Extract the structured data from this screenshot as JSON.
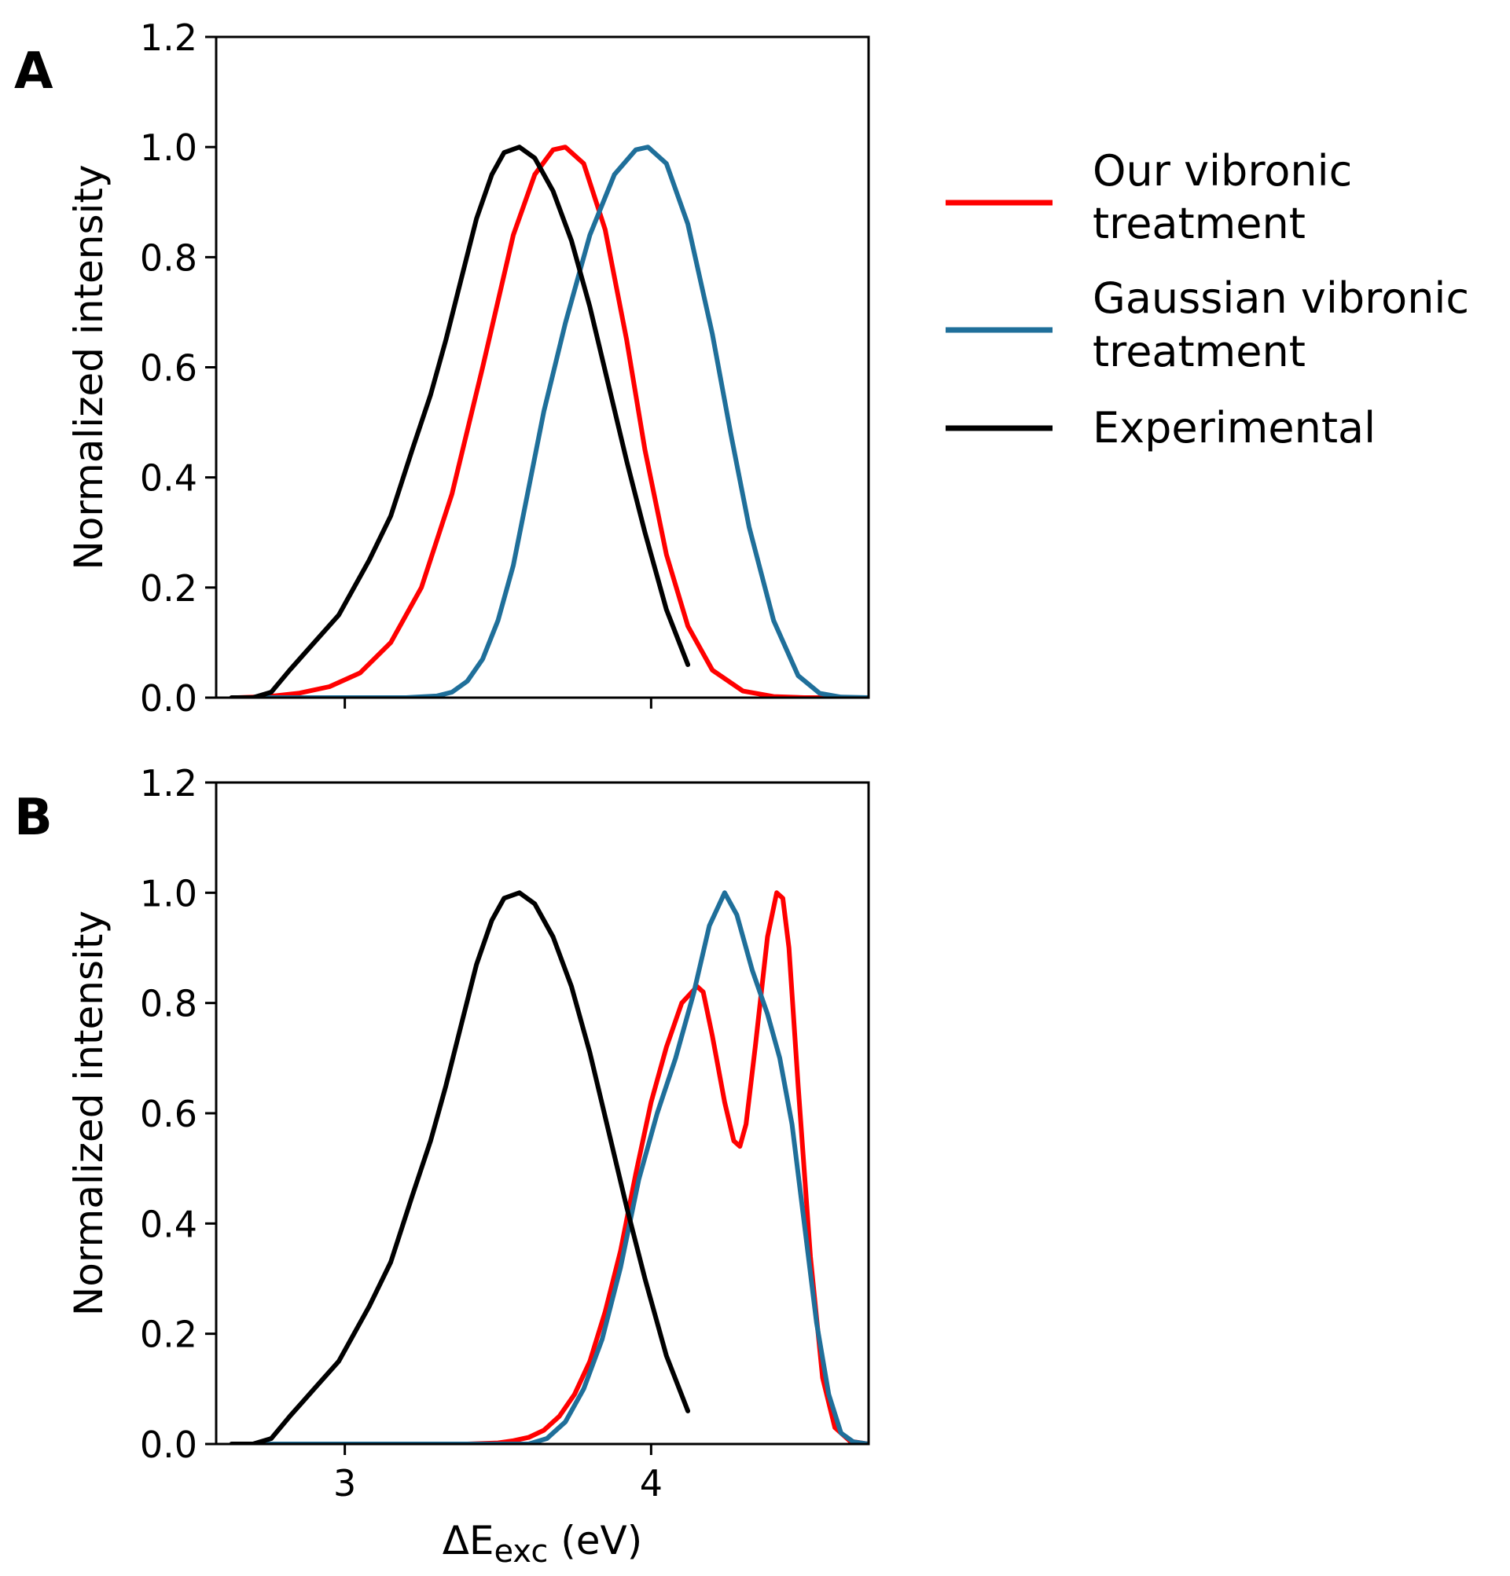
{
  "chart_data": [
    {
      "panel": "A",
      "type": "line",
      "ylabel": "Normalized intensity",
      "xlabel": "",
      "xlim": [
        2.58,
        4.71
      ],
      "ylim": [
        0.0,
        1.2
      ],
      "xticks": [
        3,
        4
      ],
      "xtick_labels_visible": false,
      "yticks": [
        0.0,
        0.2,
        0.4,
        0.6,
        0.8,
        1.0,
        1.2
      ],
      "ytick_labels": [
        "0.0",
        "0.2",
        "0.4",
        "0.6",
        "0.8",
        "1.0",
        "1.2"
      ],
      "series": [
        {
          "name": "Our vibronic treatment",
          "color": "#ff0000",
          "x": [
            2.65,
            2.75,
            2.85,
            2.95,
            3.05,
            3.15,
            3.25,
            3.35,
            3.45,
            3.55,
            3.62,
            3.68,
            3.72,
            3.78,
            3.85,
            3.92,
            3.98,
            4.05,
            4.12,
            4.2,
            4.3,
            4.4,
            4.5,
            4.6,
            4.71
          ],
          "y": [
            0.0,
            0.002,
            0.008,
            0.02,
            0.045,
            0.1,
            0.2,
            0.37,
            0.6,
            0.84,
            0.95,
            0.995,
            1.0,
            0.97,
            0.85,
            0.65,
            0.45,
            0.26,
            0.13,
            0.05,
            0.012,
            0.002,
            0.0,
            0.0,
            0.0
          ]
        },
        {
          "name": "Gaussian vibronic treatment",
          "color": "#1f6f9a",
          "x": [
            2.65,
            3.2,
            3.3,
            3.35,
            3.4,
            3.45,
            3.5,
            3.55,
            3.6,
            3.65,
            3.72,
            3.8,
            3.88,
            3.95,
            3.99,
            4.05,
            4.12,
            4.2,
            4.26,
            4.32,
            4.4,
            4.48,
            4.55,
            4.62,
            4.71
          ],
          "y": [
            0.0,
            0.0,
            0.003,
            0.01,
            0.03,
            0.07,
            0.14,
            0.24,
            0.38,
            0.52,
            0.68,
            0.84,
            0.95,
            0.995,
            1.0,
            0.97,
            0.86,
            0.66,
            0.48,
            0.31,
            0.14,
            0.04,
            0.008,
            0.001,
            0.0
          ]
        },
        {
          "name": "Experimental",
          "color": "#000000",
          "x": [
            2.63,
            2.7,
            2.76,
            2.82,
            2.9,
            2.98,
            3.02,
            3.08,
            3.15,
            3.22,
            3.28,
            3.33,
            3.38,
            3.43,
            3.48,
            3.52,
            3.57,
            3.62,
            3.68,
            3.74,
            3.8,
            3.86,
            3.92,
            3.98,
            4.05,
            4.12
          ],
          "y": [
            0.0,
            0.0,
            0.01,
            0.05,
            0.1,
            0.15,
            0.19,
            0.25,
            0.33,
            0.45,
            0.55,
            0.65,
            0.76,
            0.87,
            0.95,
            0.99,
            1.0,
            0.98,
            0.92,
            0.83,
            0.71,
            0.57,
            0.43,
            0.3,
            0.16,
            0.06
          ]
        }
      ]
    },
    {
      "panel": "B",
      "type": "line",
      "ylabel": "Normalized intensity",
      "xlabel": "ΔEexc (eV)",
      "xlim": [
        2.58,
        4.71
      ],
      "ylim": [
        0.0,
        1.2
      ],
      "xticks": [
        3,
        4
      ],
      "xtick_labels": [
        "3",
        "4"
      ],
      "yticks": [
        0.0,
        0.2,
        0.4,
        0.6,
        0.8,
        1.0,
        1.2
      ],
      "ytick_labels": [
        "0.0",
        "0.2",
        "0.4",
        "0.6",
        "0.8",
        "1.0",
        "1.2"
      ],
      "series": [
        {
          "name": "Our vibronic treatment",
          "color": "#ff0000",
          "x": [
            2.65,
            3.4,
            3.5,
            3.55,
            3.6,
            3.65,
            3.7,
            3.75,
            3.8,
            3.85,
            3.9,
            3.95,
            4.0,
            4.05,
            4.1,
            4.15,
            4.17,
            4.2,
            4.24,
            4.27,
            4.29,
            4.31,
            4.34,
            4.38,
            4.41,
            4.43,
            4.45,
            4.48,
            4.52,
            4.56,
            4.6,
            4.65,
            4.71
          ],
          "y": [
            0.0,
            0.0,
            0.002,
            0.006,
            0.012,
            0.025,
            0.05,
            0.09,
            0.15,
            0.24,
            0.35,
            0.49,
            0.62,
            0.72,
            0.8,
            0.83,
            0.82,
            0.74,
            0.62,
            0.55,
            0.54,
            0.58,
            0.72,
            0.92,
            1.0,
            0.99,
            0.9,
            0.65,
            0.34,
            0.12,
            0.03,
            0.005,
            0.0
          ]
        },
        {
          "name": "Gaussian vibronic treatment",
          "color": "#1f6f9a",
          "x": [
            2.65,
            3.6,
            3.66,
            3.72,
            3.78,
            3.84,
            3.9,
            3.96,
            4.02,
            4.08,
            4.14,
            4.19,
            4.24,
            4.28,
            4.33,
            4.38,
            4.42,
            4.46,
            4.5,
            4.54,
            4.58,
            4.62,
            4.66,
            4.71
          ],
          "y": [
            0.0,
            0.0,
            0.01,
            0.04,
            0.1,
            0.19,
            0.32,
            0.48,
            0.6,
            0.7,
            0.82,
            0.94,
            1.0,
            0.96,
            0.86,
            0.78,
            0.7,
            0.58,
            0.4,
            0.22,
            0.09,
            0.02,
            0.004,
            0.0
          ]
        },
        {
          "name": "Experimental",
          "color": "#000000",
          "x": [
            2.63,
            2.7,
            2.76,
            2.82,
            2.9,
            2.98,
            3.02,
            3.08,
            3.15,
            3.22,
            3.28,
            3.33,
            3.38,
            3.43,
            3.48,
            3.52,
            3.57,
            3.62,
            3.68,
            3.74,
            3.8,
            3.86,
            3.92,
            3.98,
            4.05,
            4.12
          ],
          "y": [
            0.0,
            0.0,
            0.01,
            0.05,
            0.1,
            0.15,
            0.19,
            0.25,
            0.33,
            0.45,
            0.55,
            0.65,
            0.76,
            0.87,
            0.95,
            0.99,
            1.0,
            0.98,
            0.92,
            0.83,
            0.71,
            0.57,
            0.43,
            0.3,
            0.16,
            0.06
          ]
        }
      ]
    }
  ],
  "legend": {
    "placement": "right",
    "entries": [
      {
        "lines": [
          "Our vibronic",
          "treatment"
        ],
        "color": "#ff0000"
      },
      {
        "lines": [
          "Gaussian vibronic",
          "treatment"
        ],
        "color": "#1f6f9a"
      },
      {
        "lines": [
          "Experimental"
        ],
        "color": "#000000"
      }
    ]
  }
}
